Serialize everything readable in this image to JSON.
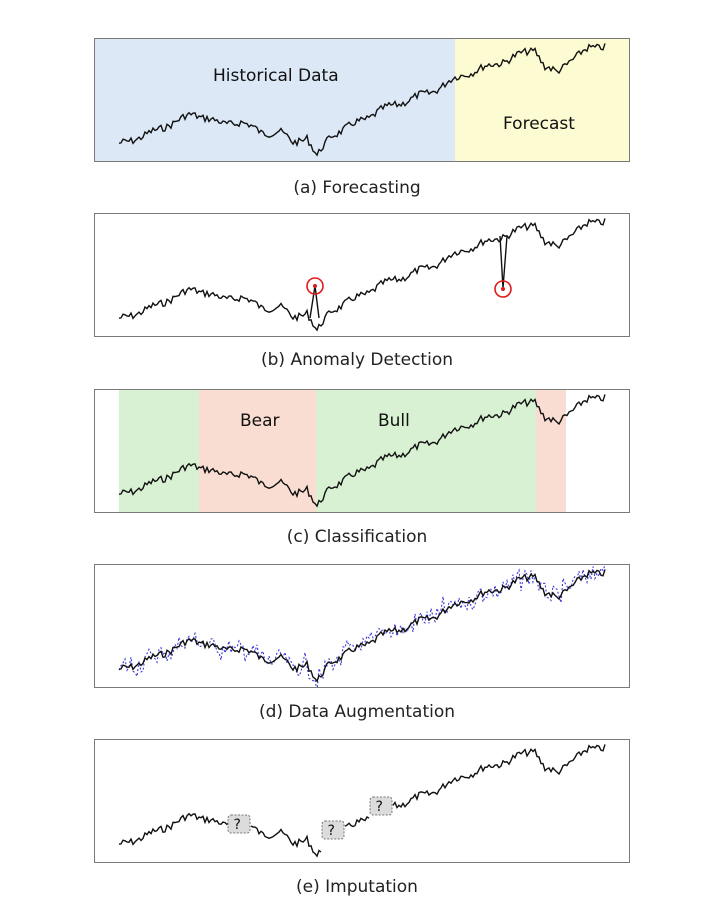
{
  "colors": {
    "line": "#111111",
    "historical": "#dce8f5",
    "forecast": "#fdfbd2",
    "bear": "#f9ddd2",
    "bull": "#d9f1d3",
    "anomaly": "#e0191b",
    "augment": "#3a3ad9",
    "question_fill": "#dcdcdc"
  },
  "panels": [
    {
      "id": "forecasting",
      "caption": "(a) Forecasting",
      "region_labels": [
        "Historical Data",
        "Forecast"
      ]
    },
    {
      "id": "anomaly",
      "caption": "(b) Anomaly Detection",
      "anomaly_count": 2
    },
    {
      "id": "classification",
      "caption": "(c) Classification",
      "region_labels": [
        "Bear",
        "Bull"
      ]
    },
    {
      "id": "augmentation",
      "caption": "(d) Data Augmentation"
    },
    {
      "id": "imputation",
      "caption": "(e) Imputation",
      "missing_marker": "?",
      "missing_count": 3
    }
  ]
}
